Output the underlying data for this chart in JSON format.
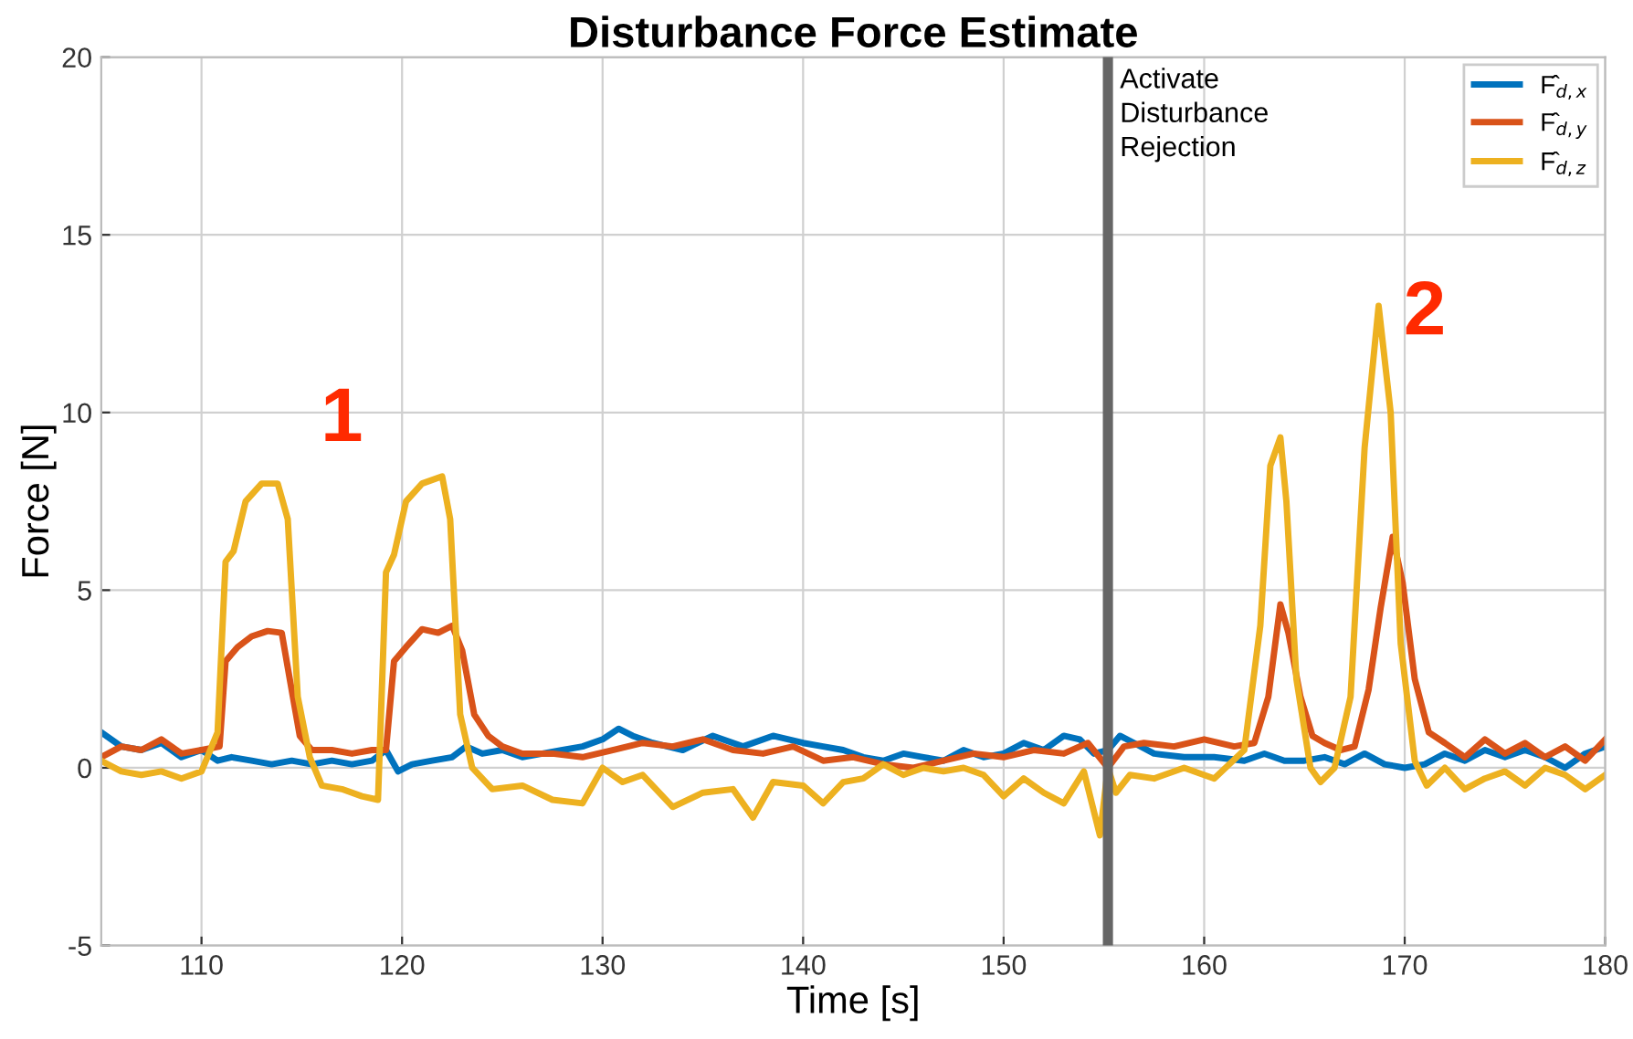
{
  "chart_data": {
    "type": "line",
    "title": "Disturbance Force Estimate",
    "xlabel": "Time [s]",
    "ylabel": "Force [N]",
    "xlim": [
      105,
      180
    ],
    "xticks": [
      110,
      120,
      130,
      140,
      150,
      160,
      170,
      180
    ],
    "ylim": [
      -5,
      20
    ],
    "yticks": [
      -5,
      0,
      5,
      10,
      15,
      20
    ],
    "grid": true,
    "legend": "top right",
    "line_style": "solid",
    "series": [
      {
        "name": "F̂$_{d,x}$",
        "color": "#0072bd",
        "x": [
          105,
          106,
          107,
          108,
          109,
          110,
          110.8,
          111.5,
          112.5,
          113.5,
          114.5,
          115.5,
          116.5,
          117.5,
          118.5,
          119.2,
          119.8,
          120.5,
          121.5,
          122.5,
          123.2,
          124,
          125,
          126,
          127,
          128,
          129,
          130,
          130.8,
          131.5,
          132.5,
          134,
          135.5,
          137,
          138.5,
          140,
          141,
          142,
          143,
          144,
          145,
          146,
          147,
          148,
          149,
          150,
          151,
          152,
          153,
          153.8,
          154.5,
          155.2,
          155.8,
          156.5,
          157.5,
          159,
          160.5,
          162,
          163,
          164,
          165,
          166,
          167,
          168,
          169,
          170,
          171,
          172,
          173,
          174,
          175,
          176,
          177,
          178,
          179,
          180
        ],
        "values": [
          1.0,
          0.6,
          0.5,
          0.7,
          0.3,
          0.5,
          0.2,
          0.3,
          0.2,
          0.1,
          0.2,
          0.1,
          0.2,
          0.1,
          0.2,
          0.5,
          -0.1,
          0.1,
          0.2,
          0.3,
          0.6,
          0.4,
          0.5,
          0.3,
          0.4,
          0.5,
          0.6,
          0.8,
          1.1,
          0.9,
          0.7,
          0.5,
          0.9,
          0.6,
          0.9,
          0.7,
          0.6,
          0.5,
          0.3,
          0.2,
          0.4,
          0.3,
          0.2,
          0.5,
          0.3,
          0.4,
          0.7,
          0.5,
          0.9,
          0.8,
          0.4,
          0.5,
          0.9,
          0.7,
          0.4,
          0.3,
          0.3,
          0.2,
          0.4,
          0.2,
          0.2,
          0.3,
          0.1,
          0.4,
          0.1,
          0.0,
          0.1,
          0.4,
          0.2,
          0.5,
          0.3,
          0.5,
          0.3,
          0.0,
          0.4,
          0.6
        ]
      },
      {
        "name": "F̂$_{d,y}$",
        "color": "#d95319",
        "x": [
          105,
          106,
          107,
          108,
          109,
          110,
          110.9,
          111.2,
          111.8,
          112.5,
          113.3,
          114,
          114.4,
          114.9,
          115.5,
          116.5,
          117.5,
          118.5,
          119.2,
          119.6,
          120.2,
          121,
          121.8,
          122.5,
          123,
          123.6,
          124.3,
          125,
          126,
          127.5,
          129,
          130.5,
          132,
          133.5,
          135,
          136.5,
          138,
          139.5,
          141,
          142.5,
          144,
          145.5,
          147,
          148.5,
          150,
          151.5,
          153,
          154.2,
          155.2,
          156,
          157,
          158.5,
          160,
          161.5,
          162.5,
          163.2,
          163.8,
          164.2,
          164.8,
          165.4,
          166,
          166.8,
          167.5,
          168.2,
          168.8,
          169.4,
          169.9,
          170.5,
          171.2,
          172,
          173,
          174,
          175,
          176,
          177,
          178,
          179,
          180
        ],
        "values": [
          0.3,
          0.6,
          0.5,
          0.8,
          0.4,
          0.5,
          0.6,
          3.0,
          3.4,
          3.7,
          3.85,
          3.8,
          2.5,
          0.9,
          0.5,
          0.5,
          0.4,
          0.5,
          0.5,
          3.0,
          3.4,
          3.9,
          3.8,
          4.0,
          3.3,
          1.5,
          0.9,
          0.6,
          0.4,
          0.4,
          0.3,
          0.5,
          0.7,
          0.6,
          0.8,
          0.5,
          0.4,
          0.6,
          0.2,
          0.3,
          0.1,
          0.0,
          0.2,
          0.4,
          0.3,
          0.5,
          0.4,
          0.7,
          0.0,
          0.6,
          0.7,
          0.6,
          0.8,
          0.6,
          0.7,
          2.0,
          4.6,
          3.8,
          2.0,
          0.9,
          0.7,
          0.5,
          0.6,
          2.2,
          4.5,
          6.5,
          5.2,
          2.5,
          1.0,
          0.7,
          0.3,
          0.8,
          0.4,
          0.7,
          0.3,
          0.6,
          0.2,
          0.8
        ]
      },
      {
        "name": "F̂$_{d,z}$",
        "color": "#edb120",
        "x": [
          105,
          106,
          107,
          108,
          109,
          110,
          110.8,
          111.2,
          111.6,
          112.2,
          113,
          113.8,
          114.3,
          114.8,
          115.4,
          116,
          117,
          118,
          118.8,
          119.2,
          119.6,
          120.2,
          121,
          122,
          122.4,
          122.9,
          123.5,
          124.5,
          126,
          127.5,
          129,
          130,
          131,
          132,
          133.5,
          135,
          136.5,
          137.5,
          138.5,
          140,
          141,
          142,
          143,
          144,
          145,
          146,
          147,
          148,
          149,
          150,
          151,
          152,
          153,
          154,
          154.8,
          155.2,
          155.6,
          156.3,
          157.5,
          159,
          160.5,
          162,
          162.8,
          163.3,
          163.8,
          164.1,
          164.6,
          165.3,
          165.8,
          166.5,
          167.3,
          168,
          168.7,
          169.3,
          169.8,
          170.5,
          171.1,
          172,
          173,
          174,
          175,
          176,
          177,
          178,
          179,
          180
        ],
        "values": [
          0.2,
          -0.1,
          -0.2,
          -0.1,
          -0.3,
          -0.1,
          1.0,
          5.8,
          6.1,
          7.5,
          8.0,
          8.0,
          7.0,
          2.0,
          0.3,
          -0.5,
          -0.6,
          -0.8,
          -0.9,
          5.5,
          6.0,
          7.5,
          8.0,
          8.2,
          7.0,
          1.5,
          0.0,
          -0.6,
          -0.5,
          -0.9,
          -1.0,
          0.0,
          -0.4,
          -0.2,
          -1.1,
          -0.7,
          -0.6,
          -1.4,
          -0.4,
          -0.5,
          -1.0,
          -0.4,
          -0.3,
          0.1,
          -0.2,
          0.0,
          -0.1,
          0.0,
          -0.2,
          -0.8,
          -0.3,
          -0.7,
          -1.0,
          -0.1,
          -1.9,
          0.0,
          -0.7,
          -0.2,
          -0.3,
          0.0,
          -0.3,
          0.5,
          4.0,
          8.5,
          9.3,
          7.5,
          2.5,
          0.0,
          -0.4,
          0.0,
          2.0,
          9.0,
          13.0,
          10.0,
          3.5,
          0.2,
          -0.5,
          0.0,
          -0.6,
          -0.3,
          -0.1,
          -0.5,
          0.0,
          -0.2,
          -0.6,
          -0.2
        ]
      }
    ],
    "ref_lines": [
      {
        "axis": "x",
        "value": 155.2,
        "label": "Activate\nDisturbance\nRejection",
        "color": "#666666"
      }
    ],
    "annotations": [
      "1",
      "2"
    ]
  }
}
